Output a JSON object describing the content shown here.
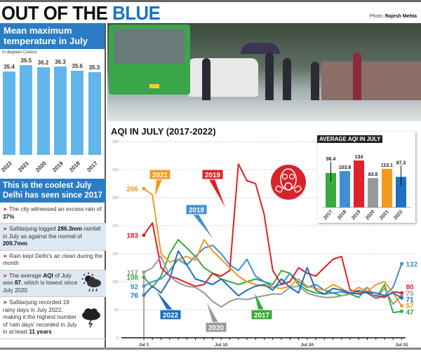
{
  "header": {
    "headline_part1": "OUT OF THE ",
    "headline_part2": "BLUE",
    "photo_credit_label": "Photo: ",
    "photo_credit_name": "Rajesh Mehta"
  },
  "left_panel": {
    "temp_title": "Mean maximum temperature in July",
    "temp_unit": "In degrees Celsius",
    "coolest_title": "This is the coolest July Delhi has seen since 2017",
    "facts": [
      {
        "pre": "The city witnessed an excess rain of ",
        "bold": "37%",
        "post": ""
      },
      {
        "pre": "Safdarjung logged ",
        "bold": "286.3mm",
        "post": " rainfall in July as against the normal of ",
        "bold2": "209.7mm"
      },
      {
        "pre": "Rain kept Delhi's air clean during the month",
        "bold": "",
        "post": ""
      },
      {
        "pre": "The average ",
        "bold": "AQI",
        "post": " of July was ",
        "bold2": "87",
        "post2": ", which is lowest since July 2020"
      },
      {
        "pre": "Safdarjung recorded 19 rainy days in July 2022, making it the highest number of 'rain days' recorded in July in at least ",
        "bold": "11 years",
        "post": ""
      }
    ]
  },
  "chart_data": [
    {
      "type": "bar",
      "title": "Mean maximum temperature in July",
      "ylabel": "In degrees Celsius",
      "categories": [
        "2022",
        "2021",
        "2020",
        "2019",
        "2018",
        "2017"
      ],
      "values": [
        35.4,
        36.5,
        36.2,
        36.3,
        35.6,
        35.3
      ],
      "color": "#62b6ea"
    },
    {
      "type": "line",
      "title": "AQI IN JULY (2017-2022)",
      "x_ticks": [
        "Jul 1",
        "Jul 10",
        "Jul 20",
        "Jul 31"
      ],
      "y_ticks": [
        0,
        50,
        100,
        150,
        200,
        250,
        300,
        350
      ],
      "ylim": [
        0,
        350
      ],
      "grid": true,
      "x": [
        1,
        2,
        3,
        4,
        5,
        6,
        7,
        8,
        9,
        10,
        11,
        12,
        13,
        14,
        15,
        16,
        17,
        18,
        19,
        20,
        21,
        22,
        23,
        24,
        25,
        26,
        27,
        28,
        29,
        30,
        31
      ],
      "series": [
        {
          "name": "2017",
          "color": "#3aaa3a",
          "start_label": "108",
          "end_label": "47",
          "values": [
            108,
            90,
            110,
            150,
            175,
            160,
            145,
            125,
            115,
            105,
            100,
            95,
            100,
            105,
            100,
            95,
            120,
            115,
            95,
            85,
            80,
            78,
            80,
            75,
            78,
            72,
            90,
            70,
            95,
            45,
            47
          ]
        },
        {
          "name": "2018",
          "color": "#3f8fd2",
          "start_label": "92",
          "end_label": "132",
          "values": [
            92,
            100,
            105,
            120,
            140,
            130,
            145,
            160,
            165,
            150,
            130,
            120,
            140,
            110,
            100,
            90,
            95,
            115,
            100,
            90,
            95,
            85,
            80,
            82,
            78,
            85,
            80,
            70,
            75,
            90,
            132
          ]
        },
        {
          "name": "2019",
          "color": "#e0202a",
          "start_label": "183",
          "end_label": "80",
          "values": [
            183,
            205,
            125,
            110,
            105,
            98,
            92,
            95,
            115,
            110,
            120,
            310,
            280,
            275,
            220,
            120,
            95,
            100,
            125,
            115,
            110,
            125,
            140,
            145,
            85,
            82,
            80,
            75,
            72,
            82,
            80
          ]
        },
        {
          "name": "2020",
          "color": "#999999",
          "start_label": "117",
          "end_label": "75",
          "values": [
            117,
            125,
            145,
            110,
            98,
            92,
            90,
            80,
            65,
            55,
            65,
            70,
            68,
            72,
            75,
            78,
            78,
            90,
            92,
            80,
            75,
            72,
            72,
            75,
            78,
            80,
            90,
            70,
            88,
            60,
            75
          ]
        },
        {
          "name": "2021",
          "color": "#f39a1e",
          "start_label": "266",
          "end_label": "57",
          "values": [
            266,
            255,
            150,
            135,
            140,
            145,
            138,
            175,
            155,
            140,
            125,
            110,
            100,
            95,
            92,
            90,
            88,
            92,
            105,
            92,
            88,
            85,
            95,
            88,
            80,
            90,
            82,
            95,
            100,
            80,
            57
          ]
        },
        {
          "name": "2022",
          "color": "#1d6fc0",
          "start_label": "76",
          "end_label": "71",
          "values": [
            76,
            92,
            80,
            105,
            155,
            130,
            105,
            100,
            95,
            105,
            90,
            75,
            85,
            92,
            95,
            85,
            105,
            90,
            80,
            125,
            85,
            78,
            88,
            85,
            80,
            78,
            82,
            80,
            75,
            80,
            71
          ]
        }
      ],
      "annotations": [
        "2021",
        "2019",
        "2018",
        "2022",
        "2020",
        "2017"
      ]
    },
    {
      "type": "bar",
      "title": "AVERAGE AQI IN JULY",
      "categories": [
        "2017",
        "2018",
        "2019",
        "2020",
        "2021",
        "2022"
      ],
      "values": [
        98.4,
        103.8,
        134,
        83.8,
        110.1,
        87.3
      ],
      "value_labels": [
        "98.4",
        "103.8",
        "134",
        "83.8",
        "110.1",
        "87.3"
      ],
      "colors": [
        "#3aaa3a",
        "#3f8fd2",
        "#e0202a",
        "#999999",
        "#f39a1e",
        "#1d6fc0"
      ]
    }
  ],
  "icons": {
    "aqi": "gas-mask-icon",
    "weather1": "sun-cloud-rain-icon",
    "weather2": "storm-cloud-icon"
  }
}
